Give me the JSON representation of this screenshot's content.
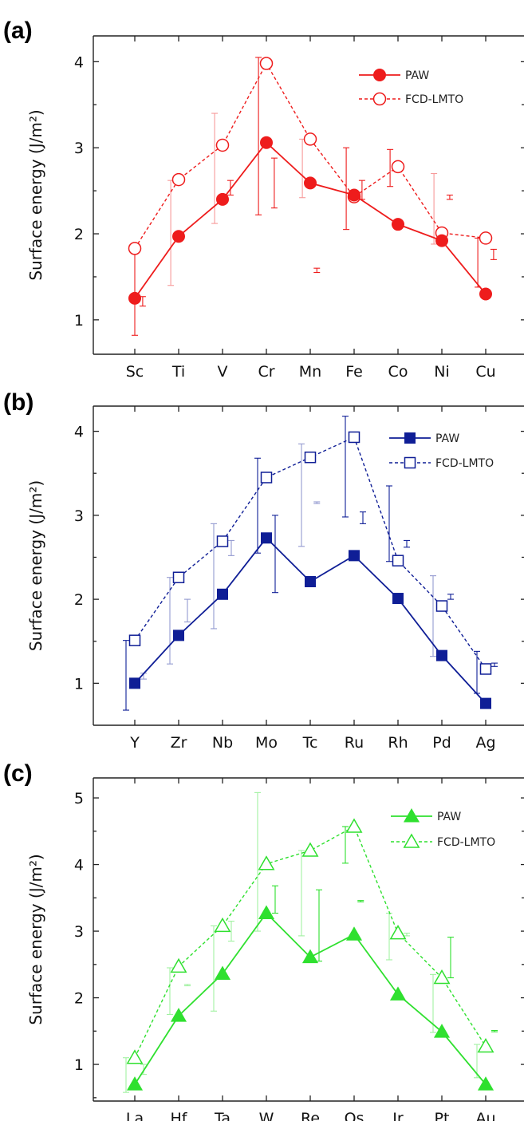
{
  "chart_data": [
    {
      "type": "line",
      "panel_label": "(a)",
      "ylabel": "Surface energy (J/m²)",
      "categories": [
        "Sc",
        "Ti",
        "V",
        "Cr",
        "Mn",
        "Fe",
        "Co",
        "Ni",
        "Cu"
      ],
      "ylim": [
        0.6,
        4.3
      ],
      "yticks": [
        "1",
        "2",
        "3",
        "4"
      ],
      "color": "#ee1c1c",
      "marker": "circle",
      "legend_position": "top-right",
      "series": [
        {
          "name": "PAW",
          "style": "solid",
          "filled": true,
          "values": [
            1.25,
            1.97,
            2.4,
            3.06,
            2.59,
            2.45,
            2.11,
            1.92,
            1.3
          ]
        },
        {
          "name": "FCD-LMTO",
          "style": "dashed",
          "filled": false,
          "values": [
            1.83,
            2.63,
            3.03,
            3.98,
            3.1,
            2.43,
            2.78,
            2.01,
            1.95
          ]
        }
      ],
      "error_bars": [
        {
          "x": 0.0,
          "lo": 0.82,
          "hi": 1.82,
          "tone": "dark"
        },
        {
          "x": 0.18,
          "lo": 1.16,
          "hi": 1.27,
          "tone": "dark"
        },
        {
          "x": 0.82,
          "lo": 1.4,
          "hi": 2.62,
          "tone": "light"
        },
        {
          "x": 1.82,
          "lo": 2.12,
          "hi": 3.4,
          "tone": "light"
        },
        {
          "x": 2.18,
          "lo": 2.45,
          "hi": 2.62,
          "tone": "dark"
        },
        {
          "x": 2.82,
          "lo": 2.22,
          "hi": 4.05,
          "tone": "dark"
        },
        {
          "x": 3.18,
          "lo": 2.3,
          "hi": 2.88,
          "tone": "dark"
        },
        {
          "x": 3.82,
          "lo": 2.42,
          "hi": 3.1,
          "tone": "light"
        },
        {
          "x": 4.15,
          "lo": 1.55,
          "hi": 1.6,
          "tone": "dark"
        },
        {
          "x": 4.82,
          "lo": 2.05,
          "hi": 3.0,
          "tone": "dark"
        },
        {
          "x": 5.18,
          "lo": 2.4,
          "hi": 2.62,
          "tone": "dark"
        },
        {
          "x": 5.82,
          "lo": 2.55,
          "hi": 2.98,
          "tone": "dark"
        },
        {
          "x": 6.82,
          "lo": 1.88,
          "hi": 2.7,
          "tone": "light"
        },
        {
          "x": 7.18,
          "lo": 2.4,
          "hi": 2.45,
          "tone": "dark"
        },
        {
          "x": 7.82,
          "lo": 1.38,
          "hi": 1.95,
          "tone": "dark"
        },
        {
          "x": 8.18,
          "lo": 1.7,
          "hi": 1.82,
          "tone": "dark"
        }
      ]
    },
    {
      "type": "line",
      "panel_label": "(b)",
      "ylabel": "Surface energy (J/m²)",
      "categories": [
        "Y",
        "Zr",
        "Nb",
        "Mo",
        "Tc",
        "Ru",
        "Rh",
        "Pd",
        "Ag"
      ],
      "ylim": [
        0.5,
        4.3
      ],
      "yticks": [
        "1",
        "2",
        "3",
        "4"
      ],
      "color": "#0f1e96",
      "marker": "square",
      "legend_position": "top-right",
      "series": [
        {
          "name": "PAW",
          "style": "solid",
          "filled": true,
          "values": [
            1.0,
            1.57,
            2.06,
            2.73,
            2.21,
            2.52,
            2.01,
            1.33,
            0.76
          ]
        },
        {
          "name": "FCD-LMTO",
          "style": "dashed",
          "filled": false,
          "values": [
            1.51,
            2.26,
            2.69,
            3.45,
            3.69,
            3.93,
            2.46,
            1.92,
            1.17
          ]
        }
      ],
      "error_bars": [
        {
          "x": -0.2,
          "lo": 0.68,
          "hi": 1.51,
          "tone": "dark"
        },
        {
          "x": 0.2,
          "lo": 1.05,
          "hi": 1.12,
          "tone": "light"
        },
        {
          "x": 0.8,
          "lo": 1.23,
          "hi": 2.26,
          "tone": "light"
        },
        {
          "x": 1.2,
          "lo": 1.73,
          "hi": 2.0,
          "tone": "light"
        },
        {
          "x": 1.8,
          "lo": 1.65,
          "hi": 2.9,
          "tone": "light"
        },
        {
          "x": 2.2,
          "lo": 2.52,
          "hi": 2.7,
          "tone": "light"
        },
        {
          "x": 2.8,
          "lo": 2.55,
          "hi": 3.68,
          "tone": "dark"
        },
        {
          "x": 3.2,
          "lo": 2.08,
          "hi": 3.0,
          "tone": "dark"
        },
        {
          "x": 3.8,
          "lo": 2.63,
          "hi": 3.85,
          "tone": "light"
        },
        {
          "x": 4.15,
          "lo": 3.14,
          "hi": 3.16,
          "tone": "light"
        },
        {
          "x": 4.8,
          "lo": 2.98,
          "hi": 4.18,
          "tone": "dark"
        },
        {
          "x": 5.2,
          "lo": 2.9,
          "hi": 3.04,
          "tone": "dark"
        },
        {
          "x": 5.8,
          "lo": 2.45,
          "hi": 3.35,
          "tone": "dark"
        },
        {
          "x": 6.2,
          "lo": 2.62,
          "hi": 2.7,
          "tone": "dark"
        },
        {
          "x": 6.8,
          "lo": 1.32,
          "hi": 2.28,
          "tone": "light"
        },
        {
          "x": 7.2,
          "lo": 2.0,
          "hi": 2.06,
          "tone": "dark"
        },
        {
          "x": 7.8,
          "lo": 0.88,
          "hi": 1.38,
          "tone": "dark"
        },
        {
          "x": 8.2,
          "lo": 1.2,
          "hi": 1.24,
          "tone": "dark"
        }
      ]
    },
    {
      "type": "line",
      "panel_label": "(c)",
      "ylabel": "Surface energy (J/m²)",
      "categories": [
        "La",
        "Hf",
        "Ta",
        "W",
        "Re",
        "Os",
        "Ir",
        "Pt",
        "Au"
      ],
      "ylim": [
        0.45,
        5.3
      ],
      "yticks": [
        "1",
        "2",
        "3",
        "4",
        "5"
      ],
      "color": "#2fe02f",
      "marker": "triangle",
      "legend_position": "top-right",
      "series": [
        {
          "name": "PAW",
          "style": "solid",
          "filled": true,
          "values": [
            0.7,
            1.73,
            2.36,
            3.27,
            2.61,
            2.95,
            2.05,
            1.49,
            0.7
          ]
        },
        {
          "name": "FCD-LMTO",
          "style": "dashed",
          "filled": false,
          "values": [
            1.1,
            2.47,
            3.08,
            4.01,
            4.21,
            4.57,
            2.97,
            2.3,
            1.27
          ]
        }
      ],
      "error_bars": [
        {
          "x": -0.2,
          "lo": 0.58,
          "hi": 1.1,
          "tone": "light"
        },
        {
          "x": 0.2,
          "lo": 0.85,
          "hi": 1.0,
          "tone": "light"
        },
        {
          "x": 0.8,
          "lo": 1.75,
          "hi": 2.45,
          "tone": "light"
        },
        {
          "x": 1.2,
          "lo": 2.18,
          "hi": 2.2,
          "tone": "light"
        },
        {
          "x": 1.8,
          "lo": 1.8,
          "hi": 3.08,
          "tone": "light"
        },
        {
          "x": 2.2,
          "lo": 2.85,
          "hi": 3.15,
          "tone": "light"
        },
        {
          "x": 2.8,
          "lo": 3.0,
          "hi": 5.08,
          "tone": "light"
        },
        {
          "x": 3.2,
          "lo": 3.27,
          "hi": 3.68,
          "tone": "dark"
        },
        {
          "x": 3.8,
          "lo": 2.93,
          "hi": 4.21,
          "tone": "light"
        },
        {
          "x": 4.2,
          "lo": 2.55,
          "hi": 3.62,
          "tone": "dark"
        },
        {
          "x": 4.8,
          "lo": 4.02,
          "hi": 4.57,
          "tone": "dark"
        },
        {
          "x": 5.15,
          "lo": 3.44,
          "hi": 3.46,
          "tone": "dark"
        },
        {
          "x": 5.8,
          "lo": 2.57,
          "hi": 3.27,
          "tone": "light"
        },
        {
          "x": 6.2,
          "lo": 2.93,
          "hi": 2.97,
          "tone": "light"
        },
        {
          "x": 6.8,
          "lo": 1.48,
          "hi": 2.35,
          "tone": "light"
        },
        {
          "x": 7.2,
          "lo": 2.3,
          "hi": 2.91,
          "tone": "dark"
        },
        {
          "x": 7.8,
          "lo": 0.8,
          "hi": 1.3,
          "tone": "light"
        },
        {
          "x": 8.2,
          "lo": 1.49,
          "hi": 1.51,
          "tone": "dark"
        }
      ]
    }
  ]
}
